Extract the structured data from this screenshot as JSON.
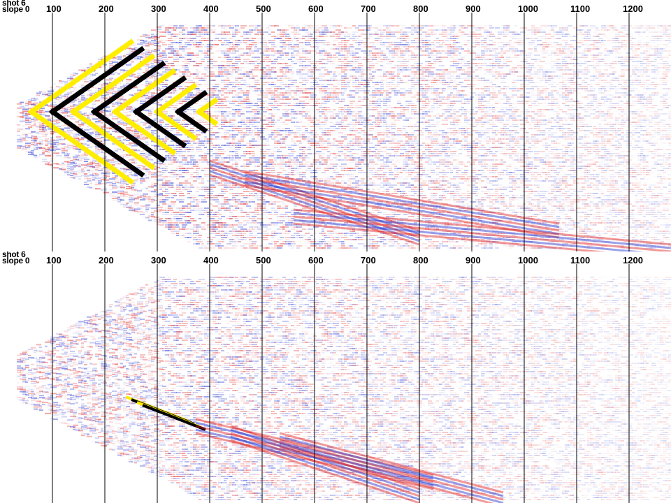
{
  "panels": [
    {
      "id": "top",
      "title_line1": "shot 6",
      "title_line2": "slope 0",
      "tick_labels": [
        "100",
        "200",
        "300",
        "400",
        "500",
        "600",
        "700",
        "800",
        "900",
        "1000",
        "1100",
        "1200"
      ]
    },
    {
      "id": "bottom",
      "title_line1": "shot 6",
      "title_line2": "slope 0",
      "tick_labels": [
        "100",
        "200",
        "300",
        "400",
        "500",
        "600",
        "700",
        "800",
        "900",
        "1000",
        "1100",
        "1200"
      ]
    }
  ],
  "colors": {
    "positive": "#e02020",
    "negative": "#2030d0",
    "strong_positive": "#ffee00",
    "strong_negative": "#000000",
    "background": "#ffffff",
    "grid_line": "#000000"
  }
}
